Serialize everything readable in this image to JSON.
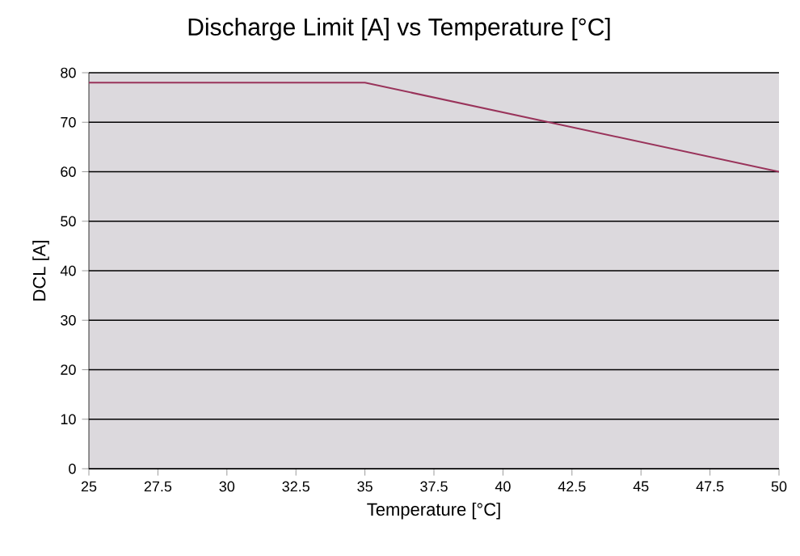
{
  "chart_data": {
    "type": "line",
    "title": "Discharge Limit [A] vs Temperature [°C]",
    "xlabel": "Temperature [°C]",
    "ylabel": "DCL [A]",
    "x": [
      25,
      35,
      50
    ],
    "series": [
      {
        "color": "#99335a",
        "values": [
          78,
          78,
          60
        ]
      }
    ],
    "xlim": [
      25,
      50
    ],
    "xticks": [
      25,
      27.5,
      30,
      32.5,
      35,
      37.5,
      40,
      42.5,
      45,
      47.5,
      50
    ],
    "ylim": [
      0,
      80
    ],
    "yticks": [
      0,
      10,
      20,
      30,
      40,
      50,
      60,
      70,
      80
    ],
    "grid": "y",
    "marker": "none",
    "line_style": "solid"
  }
}
